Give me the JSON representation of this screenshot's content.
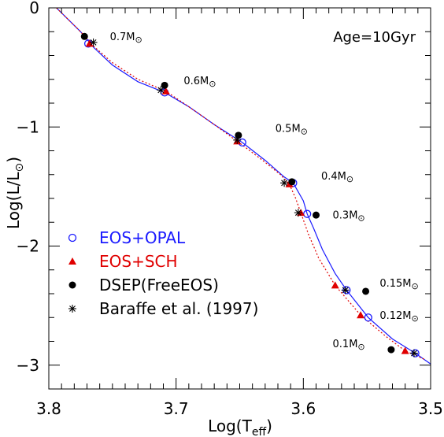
{
  "chart_data": {
    "type": "scatter",
    "title": "",
    "xlabel": "Log(T_eff)",
    "ylabel": "Log(L/L_⊙)",
    "xlim": [
      3.8,
      3.5
    ],
    "ylim": [
      -3.2,
      0
    ],
    "x_inverted": true,
    "grid": false,
    "legend_placement": "lower-left",
    "x_ticks": [
      {
        "value": 3.8,
        "label": "3.8"
      },
      {
        "value": 3.7,
        "label": "3.7"
      },
      {
        "value": 3.6,
        "label": "3.6"
      },
      {
        "value": 3.5,
        "label": "3.5"
      }
    ],
    "y_ticks": [
      {
        "value": 0,
        "label": "0"
      },
      {
        "value": -1,
        "label": "−1"
      },
      {
        "value": -2,
        "label": "−2"
      },
      {
        "value": -3,
        "label": "−3"
      }
    ],
    "age_annotation": "Age=10Gyr",
    "mass_labels": [
      {
        "text": "0.7M",
        "x": 3.752,
        "y": -0.27
      },
      {
        "text": "0.6M",
        "x": 3.694,
        "y": -0.64
      },
      {
        "text": "0.5M",
        "x": 3.622,
        "y": -1.04
      },
      {
        "text": "0.4M",
        "x": 3.586,
        "y": -1.44
      },
      {
        "text": "0.3M",
        "x": 3.577,
        "y": -1.77
      },
      {
        "text": "0.15M",
        "x": 3.54,
        "y": -2.34
      },
      {
        "text": "0.12M",
        "x": 3.54,
        "y": -2.61
      },
      {
        "text": "0.1M",
        "x": 3.577,
        "y": -2.85
      }
    ],
    "sun_symbol": "⊙",
    "series": [
      {
        "name": "EOS+OPAL",
        "marker": "open-circle",
        "color": "#1a1aff",
        "points": [
          {
            "x": 3.769,
            "y": -0.3
          },
          {
            "x": 3.709,
            "y": -0.71
          },
          {
            "x": 3.648,
            "y": -1.13
          },
          {
            "x": 3.608,
            "y": -1.47
          },
          {
            "x": 3.597,
            "y": -1.73
          },
          {
            "x": 3.566,
            "y": -2.37
          },
          {
            "x": 3.549,
            "y": -2.6
          },
          {
            "x": 3.512,
            "y": -2.9
          }
        ]
      },
      {
        "name": "EOS+SCH",
        "marker": "filled-triangle",
        "color": "#e00000",
        "points": [
          {
            "x": 3.768,
            "y": -0.3
          },
          {
            "x": 3.708,
            "y": -0.7
          },
          {
            "x": 3.652,
            "y": -1.12
          },
          {
            "x": 3.611,
            "y": -1.48
          },
          {
            "x": 3.602,
            "y": -1.72
          },
          {
            "x": 3.575,
            "y": -2.33
          },
          {
            "x": 3.555,
            "y": -2.58
          },
          {
            "x": 3.52,
            "y": -2.88
          }
        ]
      },
      {
        "name": "DSEP(FreeEOS)",
        "marker": "filled-circle",
        "color": "#000000",
        "points": [
          {
            "x": 3.772,
            "y": -0.24
          },
          {
            "x": 3.709,
            "y": -0.65
          },
          {
            "x": 3.651,
            "y": -1.07
          },
          {
            "x": 3.609,
            "y": -1.46
          },
          {
            "x": 3.59,
            "y": -1.74
          },
          {
            "x": 3.551,
            "y": -2.38
          },
          {
            "x": 3.531,
            "y": -2.87
          }
        ]
      },
      {
        "name": "Baraffe et al. (1997)",
        "marker": "asterisk",
        "color": "#000000",
        "points": [
          {
            "x": 3.765,
            "y": -0.29
          },
          {
            "x": 3.712,
            "y": -0.69
          },
          {
            "x": 3.652,
            "y": -1.11
          },
          {
            "x": 3.615,
            "y": -1.47
          },
          {
            "x": 3.604,
            "y": -1.72
          },
          {
            "x": 3.567,
            "y": -2.37
          },
          {
            "x": 3.513,
            "y": -2.9
          }
        ]
      }
    ],
    "lines": [
      {
        "name": "EOS+OPAL track",
        "style": "solid",
        "color": "#1a1aff",
        "points": [
          {
            "x": 3.794,
            "y": 0.0
          },
          {
            "x": 3.775,
            "y": -0.2
          },
          {
            "x": 3.765,
            "y": -0.33
          },
          {
            "x": 3.75,
            "y": -0.48
          },
          {
            "x": 3.73,
            "y": -0.62
          },
          {
            "x": 3.709,
            "y": -0.71
          },
          {
            "x": 3.69,
            "y": -0.83
          },
          {
            "x": 3.67,
            "y": -0.98
          },
          {
            "x": 3.648,
            "y": -1.13
          },
          {
            "x": 3.63,
            "y": -1.28
          },
          {
            "x": 3.615,
            "y": -1.42
          },
          {
            "x": 3.608,
            "y": -1.47
          },
          {
            "x": 3.6,
            "y": -1.62
          },
          {
            "x": 3.597,
            "y": -1.73
          },
          {
            "x": 3.592,
            "y": -1.85
          },
          {
            "x": 3.585,
            "y": -2.03
          },
          {
            "x": 3.575,
            "y": -2.23
          },
          {
            "x": 3.566,
            "y": -2.37
          },
          {
            "x": 3.549,
            "y": -2.6
          },
          {
            "x": 3.53,
            "y": -2.78
          },
          {
            "x": 3.512,
            "y": -2.9
          },
          {
            "x": 3.5,
            "y": -2.99
          }
        ]
      },
      {
        "name": "EOS+SCH track",
        "style": "dotted",
        "color": "#e00000",
        "points": [
          {
            "x": 3.794,
            "y": 0.0
          },
          {
            "x": 3.775,
            "y": -0.2
          },
          {
            "x": 3.765,
            "y": -0.32
          },
          {
            "x": 3.75,
            "y": -0.46
          },
          {
            "x": 3.73,
            "y": -0.6
          },
          {
            "x": 3.708,
            "y": -0.7
          },
          {
            "x": 3.69,
            "y": -0.83
          },
          {
            "x": 3.67,
            "y": -0.98
          },
          {
            "x": 3.652,
            "y": -1.12
          },
          {
            "x": 3.632,
            "y": -1.28
          },
          {
            "x": 3.618,
            "y": -1.4
          },
          {
            "x": 3.611,
            "y": -1.48
          },
          {
            "x": 3.606,
            "y": -1.6
          },
          {
            "x": 3.602,
            "y": -1.72
          },
          {
            "x": 3.596,
            "y": -1.9
          },
          {
            "x": 3.588,
            "y": -2.1
          },
          {
            "x": 3.575,
            "y": -2.33
          },
          {
            "x": 3.555,
            "y": -2.58
          },
          {
            "x": 3.535,
            "y": -2.76
          },
          {
            "x": 3.52,
            "y": -2.88
          },
          {
            "x": 3.505,
            "y": -2.95
          }
        ]
      }
    ]
  }
}
